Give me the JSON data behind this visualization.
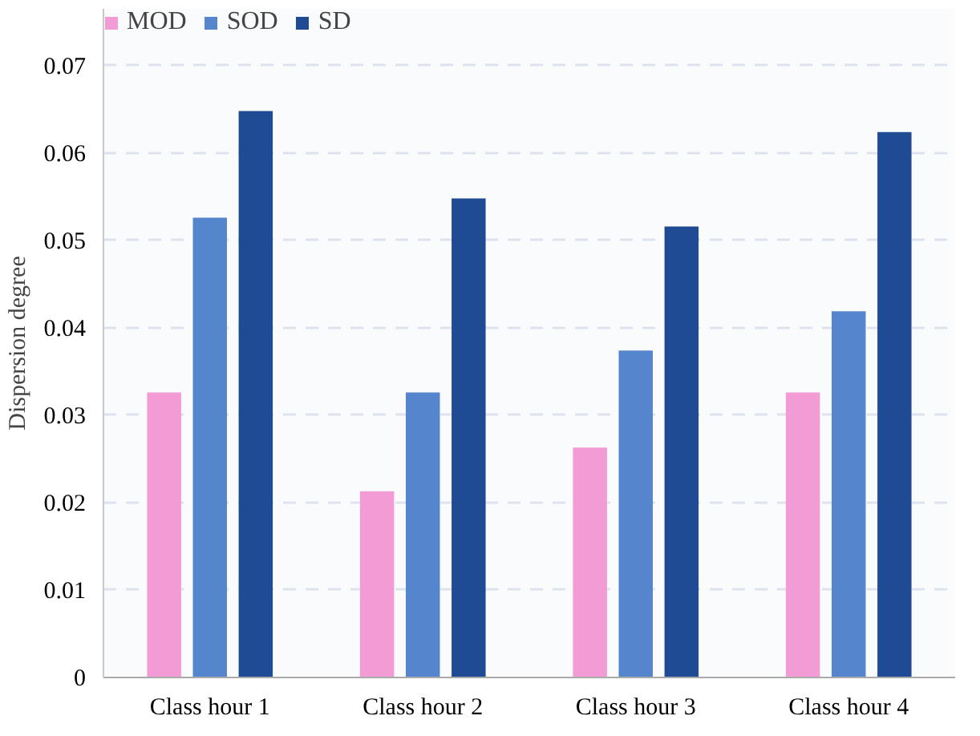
{
  "chart_data": {
    "type": "bar",
    "ylabel": "Dispersion degree",
    "categories": [
      "Class hour 1",
      "Class hour 2",
      "Class hour 3",
      "Class hour 4"
    ],
    "series": [
      {
        "name": "MOD",
        "color": "#f29bd4",
        "values": [
          0.0326,
          0.0213,
          0.0263,
          0.0326
        ]
      },
      {
        "name": "SOD",
        "color": "#5585cc",
        "values": [
          0.0526,
          0.0326,
          0.0374,
          0.0419
        ]
      },
      {
        "name": "SD",
        "color": "#1f4a94",
        "values": [
          0.0648,
          0.0548,
          0.0516,
          0.0624
        ]
      }
    ],
    "ylim": [
      0,
      0.0765
    ],
    "yticks": [
      {
        "value": 0,
        "label": "0"
      },
      0.01,
      0.02,
      0.03,
      0.04,
      0.05,
      0.06,
      0.07
    ],
    "grid": "y",
    "legend": "top left"
  }
}
